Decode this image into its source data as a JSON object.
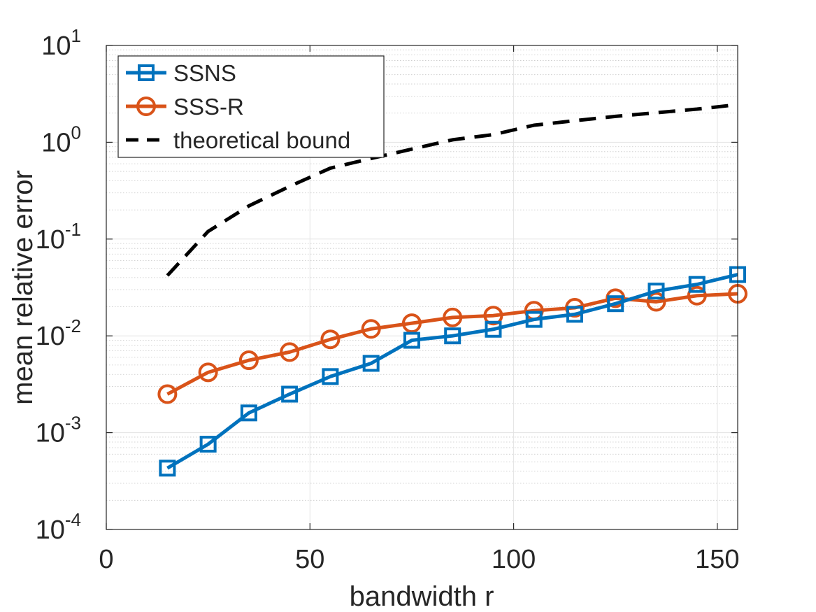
{
  "chart_data": {
    "type": "line",
    "xlabel": "bandwidth r",
    "ylabel": "mean relative error",
    "yscale": "log",
    "xlim": [
      0,
      155
    ],
    "ylim_exp": [
      -4,
      1
    ],
    "grid": true,
    "legend_position": "top-left",
    "x_ticks": [
      {
        "value": 0,
        "label": "0"
      },
      {
        "value": 50,
        "label": "50"
      },
      {
        "value": 100,
        "label": "100"
      },
      {
        "value": 150,
        "label": "150"
      }
    ],
    "y_ticks": [
      {
        "exp": -4,
        "base": "10",
        "power": "-4"
      },
      {
        "exp": -3,
        "base": "10",
        "power": "-3"
      },
      {
        "exp": -2,
        "base": "10",
        "power": "-2"
      },
      {
        "exp": -1,
        "base": "10",
        "power": "-1"
      },
      {
        "exp": 0,
        "base": "10",
        "power": "0"
      },
      {
        "exp": 1,
        "base": "10",
        "power": "1"
      }
    ],
    "x": [
      15,
      25,
      35,
      45,
      55,
      65,
      75,
      85,
      95,
      105,
      115,
      125,
      135,
      145,
      155
    ],
    "series": [
      {
        "name": "SSNS",
        "color": "#0072BD",
        "marker": "square",
        "dash": "solid",
        "values": [
          0.00043,
          0.00076,
          0.0016,
          0.0025,
          0.0038,
          0.0052,
          0.009,
          0.01,
          0.0117,
          0.0148,
          0.0167,
          0.0215,
          0.029,
          0.034,
          0.043
        ]
      },
      {
        "name": "SSS-R",
        "color": "#D95319",
        "marker": "circle",
        "dash": "solid",
        "values": [
          0.0025,
          0.0042,
          0.0056,
          0.0068,
          0.0092,
          0.0118,
          0.0135,
          0.0155,
          0.0162,
          0.0182,
          0.0195,
          0.0245,
          0.0225,
          0.026,
          0.0272
        ]
      },
      {
        "name": "theoretical bound",
        "color": "#000000",
        "marker": "none",
        "dash": "dashed",
        "values": [
          0.042,
          0.12,
          0.22,
          0.35,
          0.54,
          0.68,
          0.85,
          1.06,
          1.2,
          1.5,
          1.67,
          1.85,
          2.02,
          2.2,
          2.45
        ]
      }
    ]
  }
}
